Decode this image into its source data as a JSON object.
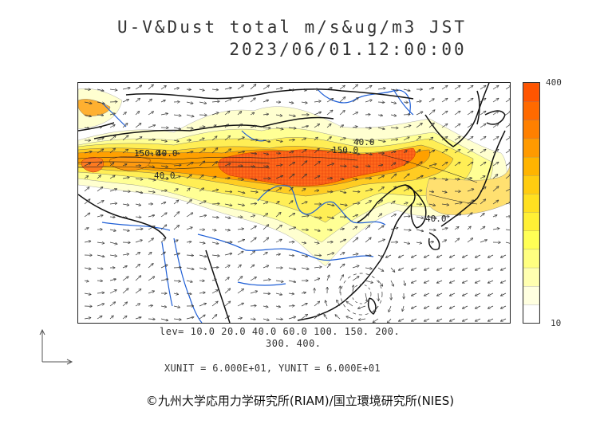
{
  "title_line1": "U-V&Dust  total  m/s&ug/m3 JST",
  "title_line2": "2023/06/01.12:00:00",
  "colorbar": {
    "max_label": "400",
    "min_label": "10",
    "colors": [
      "#ffffff",
      "#ffffe0",
      "#ffffb0",
      "#ffff80",
      "#ffff55",
      "#fff035",
      "#ffe020",
      "#ffcc10",
      "#ffb400",
      "#ff9a00",
      "#ff8000",
      "#ff6a00",
      "#ff5500"
    ]
  },
  "levels_line1": "lev= 10.0 20.0 40.0 60.0 100. 150. 200.",
  "levels_line2": "300. 400.",
  "units_text": "XUNIT = 6.000E+01, YUNIT = 6.000E+01",
  "credit": "©九州大学応用力学研究所(RIAM)/国立環境研究所(NIES)",
  "contour_labels": [
    "150.0",
    "40.0",
    "40.0",
    "150.0",
    "40.0",
    "40.0"
  ],
  "colors": {
    "land_boundary": "#111111",
    "rivers": "#1f5fd6",
    "wind_arrows": "#333333",
    "dust_high": "#ff5522",
    "dust_low": "#ffffb0"
  }
}
